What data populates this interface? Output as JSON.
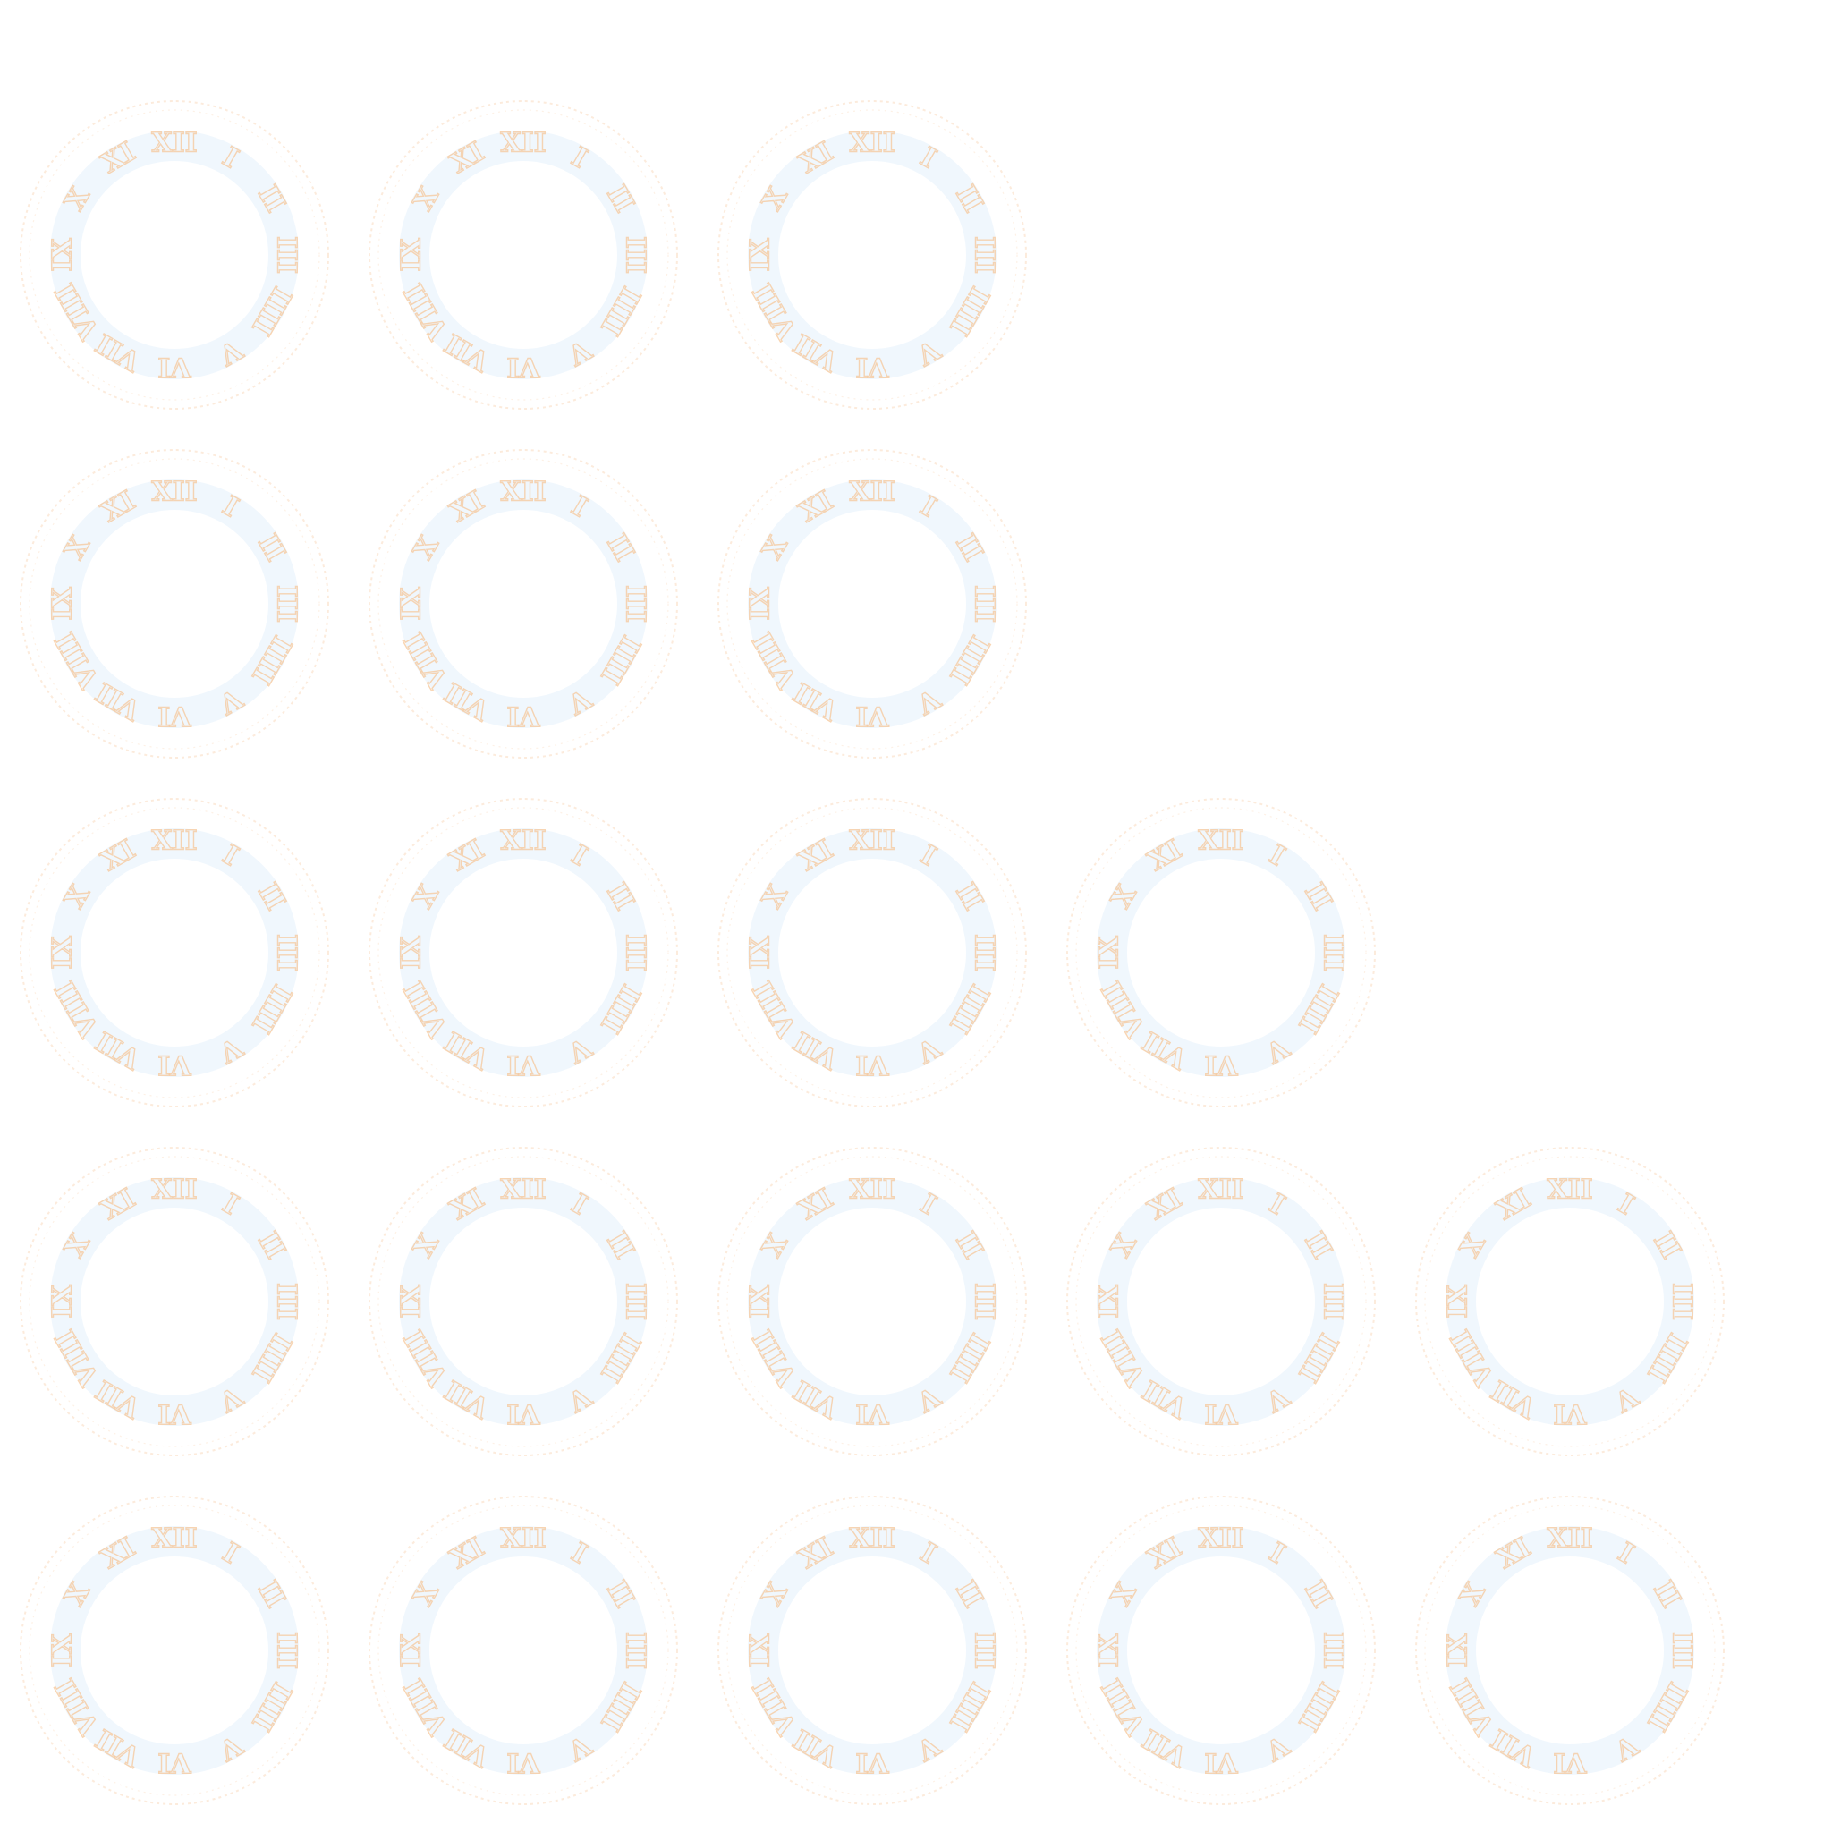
{
  "colors": {
    "background": "#ffffff",
    "warm": "#f6c79a",
    "cool": "#b9dcf5"
  },
  "grid": {
    "rows": [
      {
        "count": 3
      },
      {
        "count": 3
      },
      {
        "count": 4
      },
      {
        "count": 5
      },
      {
        "count": 5
      }
    ]
  },
  "dial": {
    "numerals": [
      "XII",
      "I",
      "II",
      "III",
      "IIII",
      "V",
      "VI",
      "VII",
      "VIII",
      "IX",
      "X",
      "XI"
    ]
  }
}
